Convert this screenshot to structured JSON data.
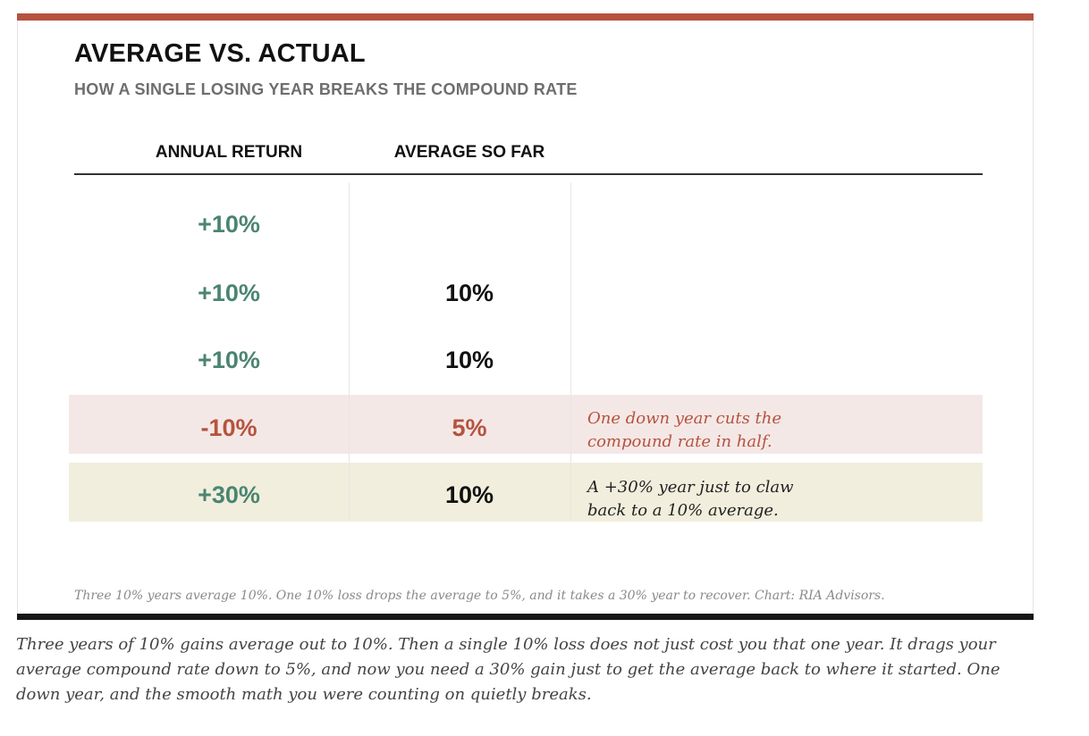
{
  "header": {
    "title": "AVERAGE VS. ACTUAL",
    "subtitle": "HOW A SINGLE LOSING YEAR BREAKS THE COMPOUND RATE"
  },
  "colors": {
    "accent_red": "#b5533f",
    "gain_green": "#4b8571",
    "loss_band": "#f4e8e6",
    "recover_band": "#f1eedd"
  },
  "chart_data": {
    "type": "table",
    "title": "AVERAGE VS. ACTUAL",
    "subtitle": "HOW A SINGLE LOSING YEAR BREAKS THE COMPOUND RATE",
    "columns": [
      "ANNUAL RETURN",
      "AVERAGE SO FAR"
    ],
    "rows": [
      {
        "annual_return": "+10%",
        "average_so_far": "",
        "annotation": ""
      },
      {
        "annual_return": "+10%",
        "average_so_far": "10%",
        "annotation": ""
      },
      {
        "annual_return": "+10%",
        "average_so_far": "10%",
        "annotation": ""
      },
      {
        "annual_return": "-10%",
        "average_so_far": "5%",
        "annotation": "One down year cuts the compound rate in half."
      },
      {
        "annual_return": "+30%",
        "average_so_far": "10%",
        "annotation": "A +30% year just to claw back to a 10% average."
      }
    ],
    "annual_return_values": [
      10,
      10,
      10,
      -10,
      30
    ],
    "average_so_far_values": [
      null,
      10,
      10,
      5,
      10
    ]
  },
  "annotations": {
    "loss_line1": "One down year cuts the",
    "loss_line2": "compound rate in half.",
    "recover_line1": "A +30% year just to claw",
    "recover_line2": "back to a 10% average."
  },
  "footnote": "Three 10% years average 10%. One 10% loss drops the average to 5%, and it takes a 30% year to recover. Chart: RIA Advisors.",
  "caption": "Three years of 10% gains average out to 10%. Then a single 10% loss does not just cost you that one year. It drags your average compound rate down to 5%, and now you need a 30% gain just to get the average back to where it started. One down year, and the smooth math you were counting on quietly breaks."
}
